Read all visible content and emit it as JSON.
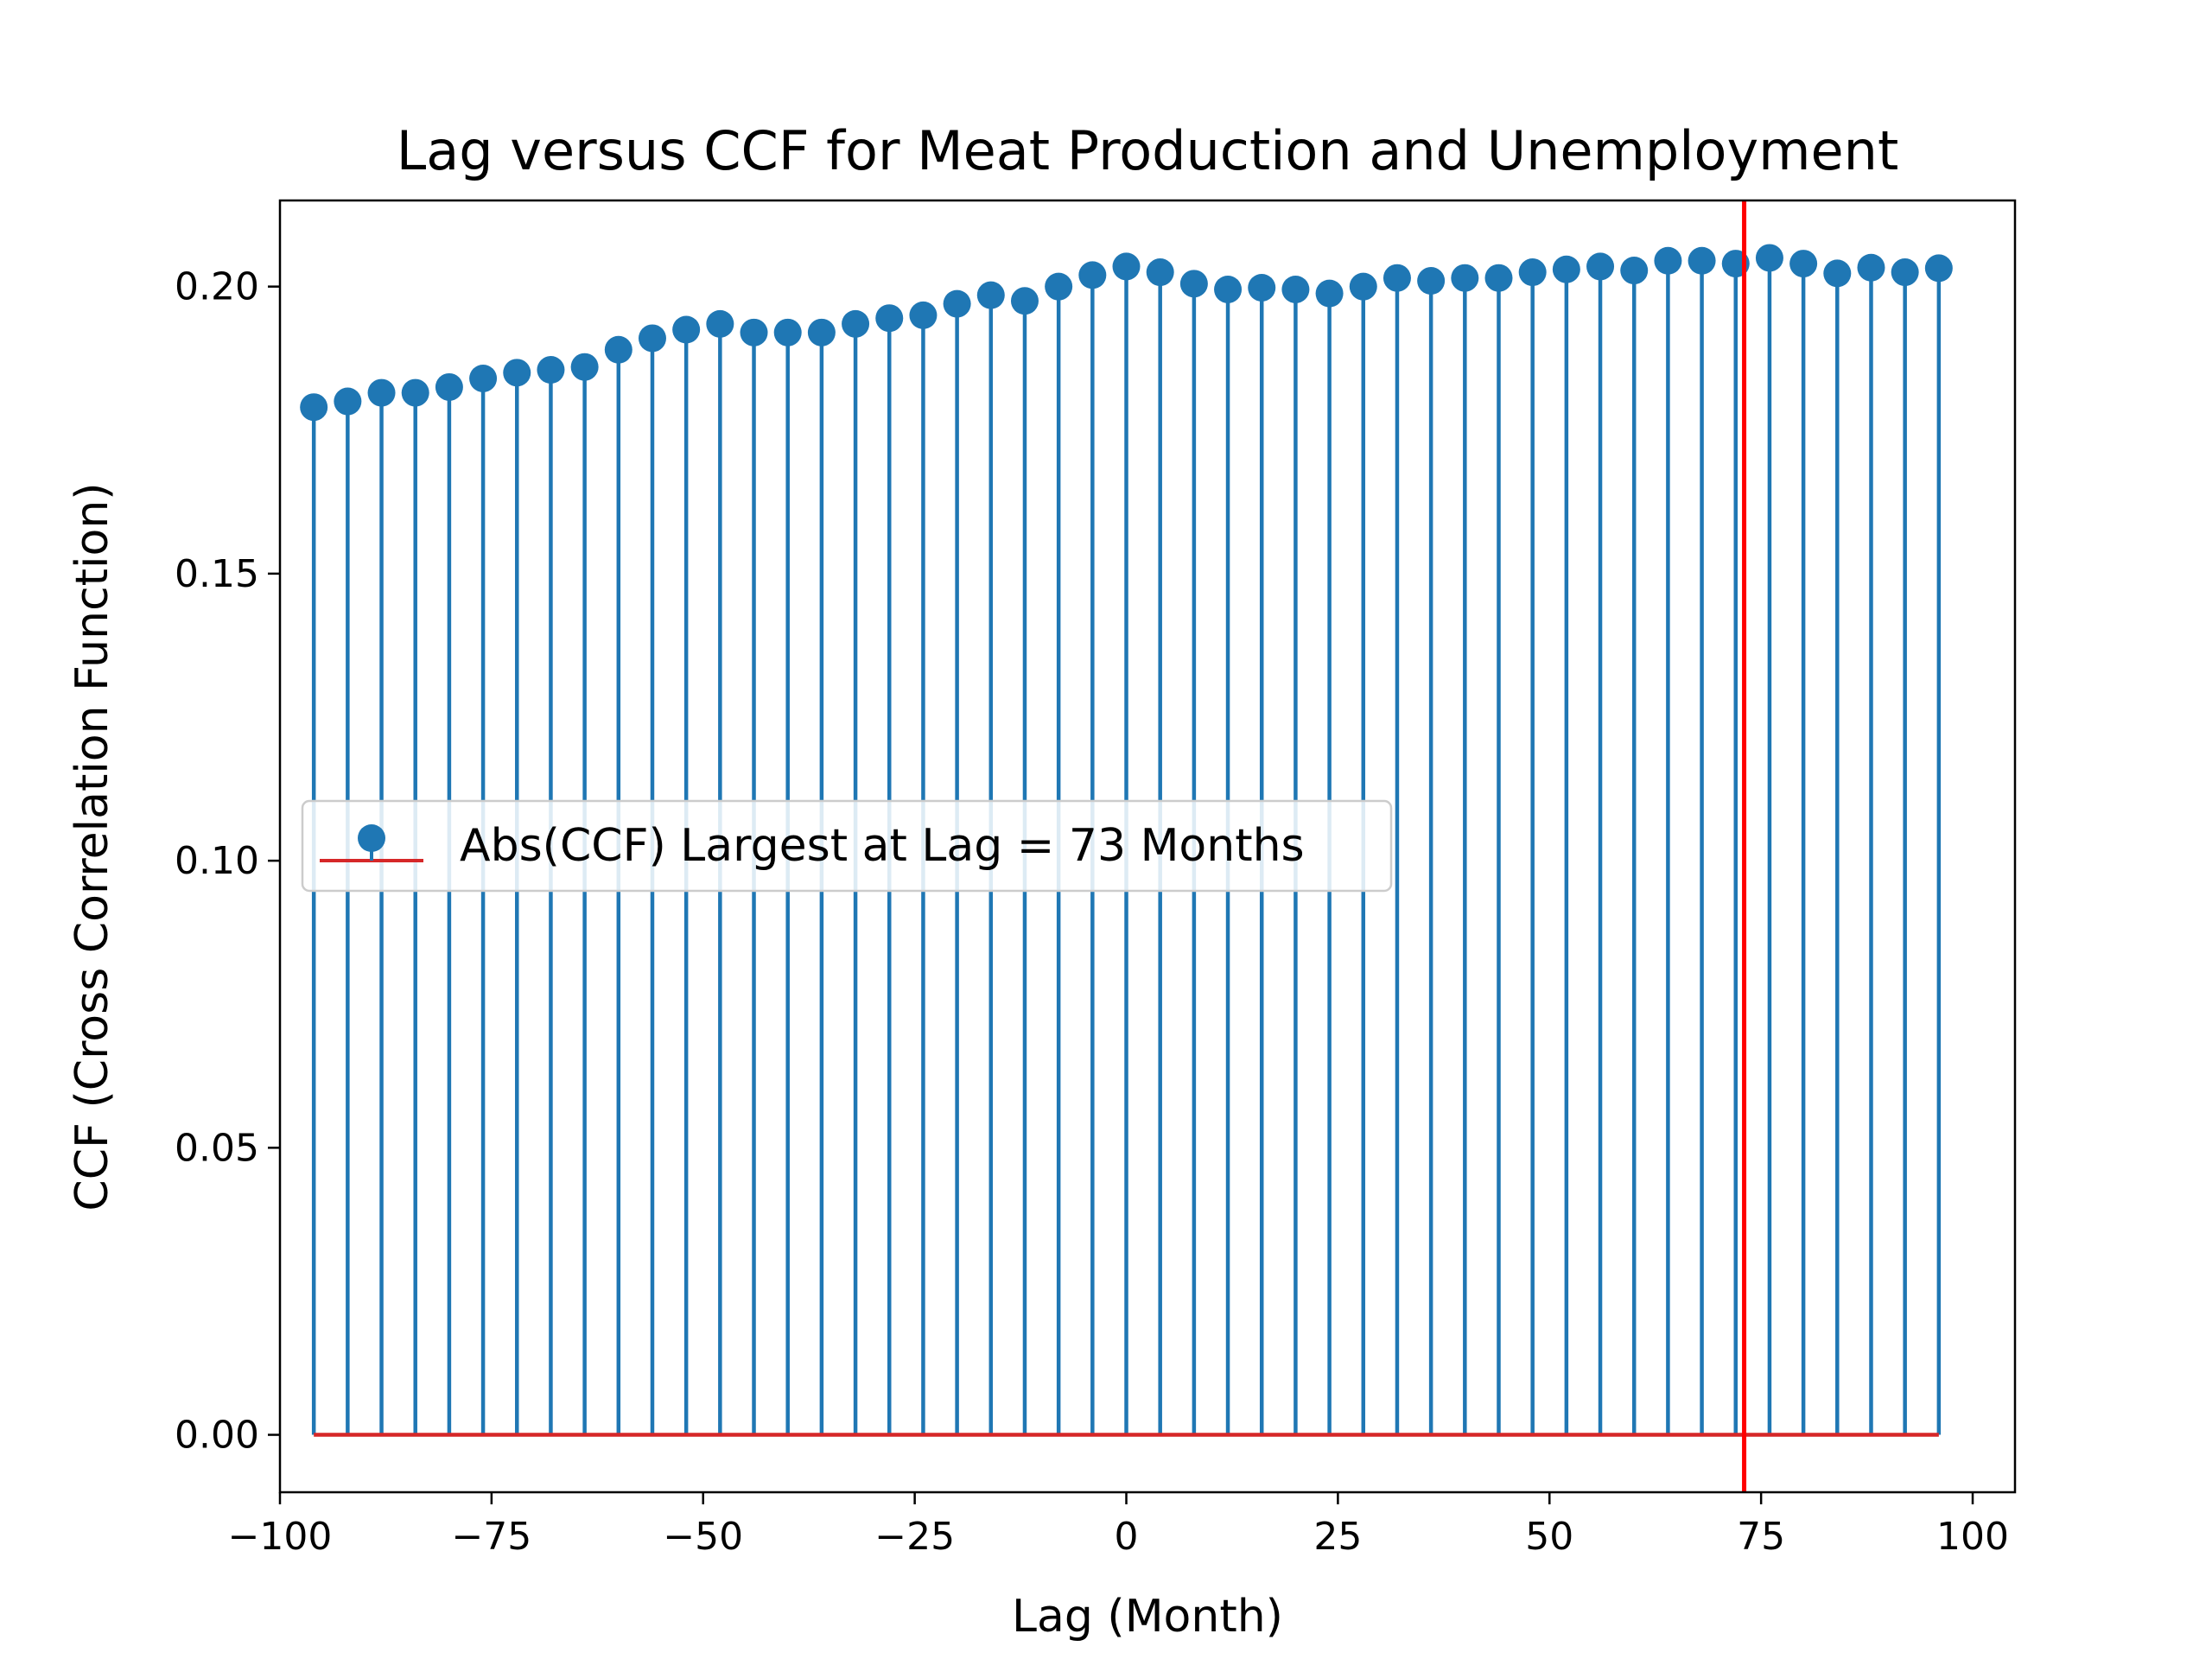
{
  "chart_data": {
    "type": "stem",
    "title": "Lag versus CCF for Meat Production and Unemployment",
    "xlabel": "Lag (Month)",
    "ylabel": "CCF (Cross Correlation Function)",
    "xlim": [
      -100,
      105
    ],
    "ylim": [
      -0.01,
      0.215
    ],
    "xticks": [
      -100,
      -75,
      -50,
      -25,
      0,
      25,
      50,
      75,
      100
    ],
    "xtick_labels": [
      "−100",
      "−75",
      "−50",
      "−25",
      "0",
      "25",
      "50",
      "75",
      "100"
    ],
    "yticks": [
      0.0,
      0.05,
      0.1,
      0.15,
      0.2
    ],
    "ytick_labels": [
      "0.00",
      "0.05",
      "0.10",
      "0.15",
      "0.20"
    ],
    "grid": false,
    "legend_position": "center-left",
    "series": [
      {
        "name": "Abs(CCF) Largest at Lag = 73 Months",
        "x": [
          -96,
          -92,
          -88,
          -84,
          -80,
          -76,
          -72,
          -68,
          -64,
          -60,
          -56,
          -52,
          -48,
          -44,
          -40,
          -36,
          -32,
          -28,
          -24,
          -20,
          -16,
          -12,
          -8,
          -4,
          0,
          4,
          8,
          12,
          16,
          20,
          24,
          28,
          32,
          36,
          40,
          44,
          48,
          52,
          56,
          60,
          64,
          68,
          72,
          76,
          80,
          84,
          88,
          92,
          96
        ],
        "y": [
          0.179,
          0.18,
          0.1815,
          0.1815,
          0.1825,
          0.184,
          0.185,
          0.1855,
          0.186,
          0.189,
          0.191,
          0.1925,
          0.1935,
          0.192,
          0.192,
          0.192,
          0.1935,
          0.1945,
          0.195,
          0.197,
          0.1985,
          0.1975,
          0.2,
          0.202,
          0.2035,
          0.2025,
          0.2005,
          0.1995,
          0.1998,
          0.1995,
          0.1988,
          0.2,
          0.2015,
          0.201,
          0.2015,
          0.2015,
          0.2025,
          0.203,
          0.2035,
          0.2028,
          0.2045,
          0.2045,
          0.204,
          0.205,
          0.204,
          0.2023,
          0.2033,
          0.2025,
          0.2032
        ],
        "color": "#1f77b4",
        "baseline_color": "#d62728"
      }
    ],
    "vline": {
      "x": 73,
      "color": "#ff0000"
    }
  }
}
